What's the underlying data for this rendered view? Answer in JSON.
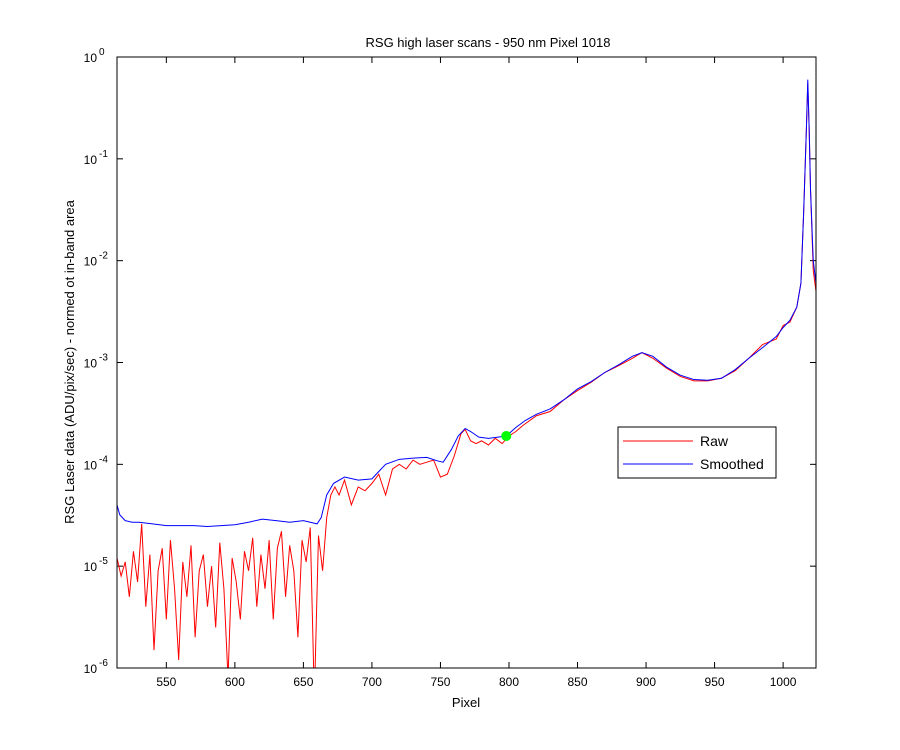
{
  "chart_data": {
    "type": "line",
    "title": "RSG high laser scans  - 950 nm    Pixel 1018",
    "xlabel": "Pixel",
    "ylabel": "RSG Laser data (ADU/pix/sec) - normed ot in-band area",
    "yscale": "log",
    "xlim": [
      514,
      1024
    ],
    "ylim": [
      1e-06,
      1
    ],
    "xticks": [
      550,
      600,
      650,
      700,
      750,
      800,
      850,
      900,
      950,
      1000
    ],
    "yticks": [
      {
        "value": 1,
        "label": "10",
        "exponent": "0"
      },
      {
        "value": 0.1,
        "label": "10",
        "exponent": "-1"
      },
      {
        "value": 0.01,
        "label": "10",
        "exponent": "-2"
      },
      {
        "value": 0.001,
        "label": "10",
        "exponent": "-3"
      },
      {
        "value": 0.0001,
        "label": "10",
        "exponent": "-4"
      },
      {
        "value": 1e-05,
        "label": "10",
        "exponent": "-5"
      },
      {
        "value": 1e-06,
        "label": "10",
        "exponent": "-6"
      }
    ],
    "legend_loc": "east",
    "series": [
      {
        "name": "Raw",
        "color": "#ff0000",
        "x": [
          514,
          517,
          520,
          523,
          526,
          529,
          532,
          535,
          538,
          541,
          544,
          547,
          550,
          553,
          556,
          559,
          562,
          565,
          568,
          571,
          574,
          577,
          580,
          583,
          586,
          589,
          592,
          595,
          598,
          601,
          604,
          607,
          610,
          613,
          616,
          619,
          622,
          625,
          628,
          631,
          634,
          637,
          640,
          643,
          646,
          649,
          652,
          655,
          658,
          661,
          664,
          667,
          670,
          673,
          676,
          680,
          685,
          690,
          695,
          700,
          705,
          710,
          715,
          720,
          725,
          730,
          735,
          740,
          745,
          750,
          755,
          760,
          765,
          768,
          772,
          776,
          780,
          785,
          790,
          795,
          800,
          805,
          810,
          820,
          830,
          840,
          850,
          860,
          870,
          880,
          890,
          897,
          905,
          915,
          925,
          935,
          945,
          955,
          965,
          975,
          985,
          995,
          1000,
          1005,
          1010,
          1013,
          1015,
          1017,
          1018,
          1019,
          1020,
          1022,
          1024
        ],
        "values": [
          1.2e-05,
          8e-06,
          1.1e-05,
          5e-06,
          1.4e-05,
          7e-06,
          2.6e-05,
          4e-06,
          1.3e-05,
          1.5e-06,
          9e-06,
          1.5e-05,
          3e-06,
          1.8e-05,
          6e-06,
          1.2e-06,
          1.1e-05,
          5e-06,
          1.6e-05,
          2e-06,
          9e-06,
          1.3e-05,
          4e-06,
          1e-05,
          2.5e-06,
          1.7e-05,
          6e-06,
          8e-07,
          1.2e-05,
          7e-06,
          3e-06,
          1.4e-05,
          9e-06,
          1.9e-05,
          4e-06,
          1.3e-05,
          6e-06,
          1.8e-05,
          3e-06,
          1.5e-05,
          2.2e-05,
          5e-06,
          1.6e-05,
          9e-06,
          2e-06,
          1.8e-05,
          1.1e-05,
          2.4e-05,
          5e-07,
          2e-05,
          9e-06,
          3e-05,
          5e-05,
          6e-05,
          5e-05,
          7e-05,
          4e-05,
          6e-05,
          5.5e-05,
          6.5e-05,
          8e-05,
          5e-05,
          9e-05,
          0.0001,
          9e-05,
          0.00011,
          0.0001,
          0.000105,
          0.00011,
          7.5e-05,
          8e-05,
          0.00012,
          0.0002,
          0.00022,
          0.00017,
          0.00016,
          0.00017,
          0.000155,
          0.00018,
          0.00016,
          0.00019,
          0.00021,
          0.00024,
          0.0003,
          0.00033,
          0.00043,
          0.00053,
          0.00064,
          0.0008,
          0.00093,
          0.0011,
          0.00125,
          0.0011,
          0.00088,
          0.00073,
          0.00066,
          0.00066,
          0.0007,
          0.00083,
          0.0011,
          0.0015,
          0.0017,
          0.0023,
          0.0025,
          0.0035,
          0.006,
          0.03,
          0.2,
          0.55,
          0.2,
          0.05,
          0.008,
          0.005
        ]
      },
      {
        "name": "Smoothed",
        "color": "#0000ff",
        "x": [
          514,
          516,
          520,
          525,
          530,
          540,
          550,
          560,
          570,
          580,
          590,
          600,
          610,
          620,
          630,
          640,
          650,
          655,
          660,
          663,
          667,
          672,
          680,
          690,
          700,
          705,
          710,
          720,
          730,
          740,
          748,
          752,
          758,
          763,
          768,
          772,
          778,
          785,
          792,
          798,
          805,
          812,
          820,
          830,
          840,
          850,
          860,
          870,
          880,
          890,
          897,
          905,
          915,
          925,
          935,
          945,
          955,
          965,
          975,
          985,
          995,
          1000,
          1005,
          1010,
          1013,
          1015,
          1017,
          1018,
          1019,
          1020,
          1022,
          1024
        ],
        "values": [
          4e-05,
          3.2e-05,
          2.8e-05,
          2.7e-05,
          2.7e-05,
          2.6e-05,
          2.5e-05,
          2.5e-05,
          2.5e-05,
          2.45e-05,
          2.5e-05,
          2.55e-05,
          2.7e-05,
          2.9e-05,
          2.8e-05,
          2.7e-05,
          2.8e-05,
          2.7e-05,
          2.6e-05,
          3e-05,
          5e-05,
          6.5e-05,
          7.5e-05,
          7e-05,
          7.2e-05,
          8.5e-05,
          0.0001,
          0.000112,
          0.000115,
          0.000117,
          0.000108,
          0.000105,
          0.00014,
          0.00019,
          0.000225,
          0.00021,
          0.000185,
          0.00018,
          0.000185,
          0.00019,
          0.00023,
          0.00027,
          0.00031,
          0.00035,
          0.00043,
          0.00055,
          0.00065,
          0.0008,
          0.00095,
          0.00115,
          0.00125,
          0.00115,
          0.0009,
          0.00075,
          0.00068,
          0.00067,
          0.0007,
          0.00085,
          0.0011,
          0.0014,
          0.0018,
          0.0022,
          0.0026,
          0.0035,
          0.006,
          0.03,
          0.2,
          0.6,
          0.2,
          0.05,
          0.01,
          0.006
        ]
      }
    ],
    "marker": {
      "x": 798,
      "y": 0.00019,
      "color": "#00ff00"
    }
  }
}
